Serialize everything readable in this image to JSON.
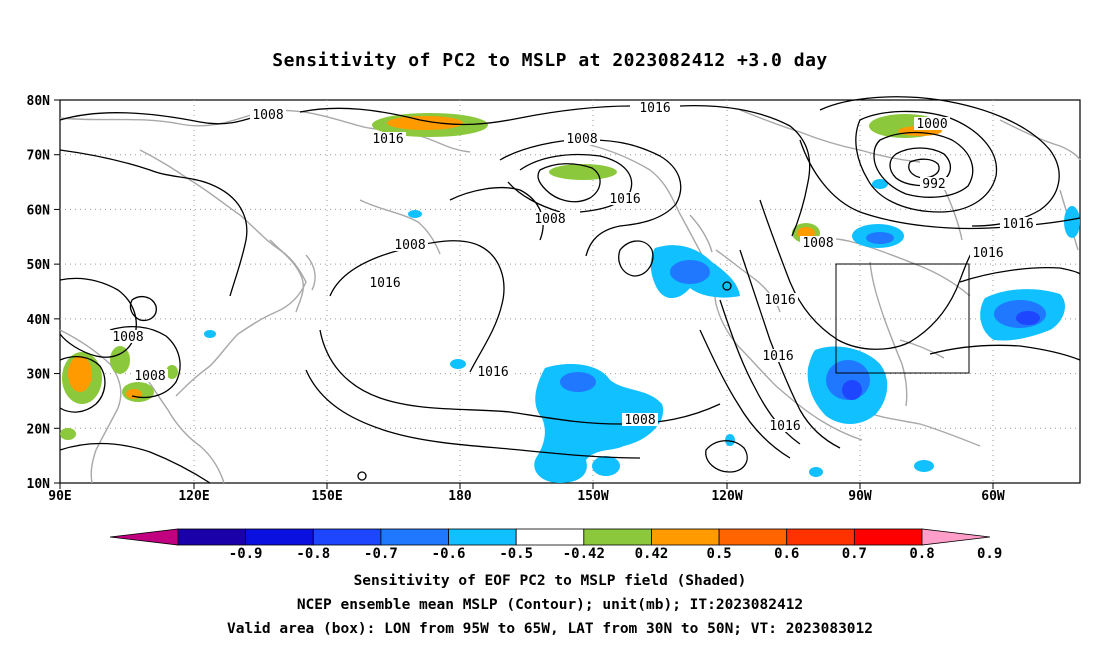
{
  "title": "Sensitivity of PC2 to MSLP at 2023082412 +3.0 day",
  "map": {
    "y_ticks": [
      "80N",
      "70N",
      "60N",
      "50N",
      "40N",
      "30N",
      "20N",
      "10N"
    ],
    "x_ticks": [
      "90E",
      "120E",
      "150E",
      "180",
      "150W",
      "120W",
      "90W",
      "60W"
    ],
    "contour_labels": [
      "1008",
      "1016",
      "1008",
      "1016",
      "1000",
      "992",
      "1008",
      "1016",
      "1008",
      "1016",
      "1016",
      "1008",
      "1016",
      "1016",
      "1016",
      "1008",
      "1016",
      "1016",
      "1008",
      "1008"
    ],
    "box": {
      "lon": [
        "95W",
        "65W"
      ],
      "lat": [
        "30N",
        "50N"
      ]
    }
  },
  "colorbar": {
    "labels": [
      "-0.9",
      "-0.8",
      "-0.7",
      "-0.6",
      "-0.5",
      "-0.42",
      "0.42",
      "0.5",
      "0.6",
      "0.7",
      "0.8",
      "0.9"
    ],
    "colors": [
      "#c0007f",
      "#1a00a8",
      "#0a10e0",
      "#1e46ff",
      "#1f78ff",
      "#10c0ff",
      "#ffffff",
      "#8cc83c",
      "#ff9a00",
      "#ff6400",
      "#ff3200",
      "#ff0000",
      "#ff9ec8"
    ]
  },
  "captions": [
    "Sensitivity of EOF PC2 to MSLP field (Shaded)",
    "NCEP ensemble mean MSLP (Contour); unit(mb); IT:2023082412",
    "Valid area (box): LON from 95W to 65W, LAT from 30N to 50N; VT: 2023083012"
  ]
}
